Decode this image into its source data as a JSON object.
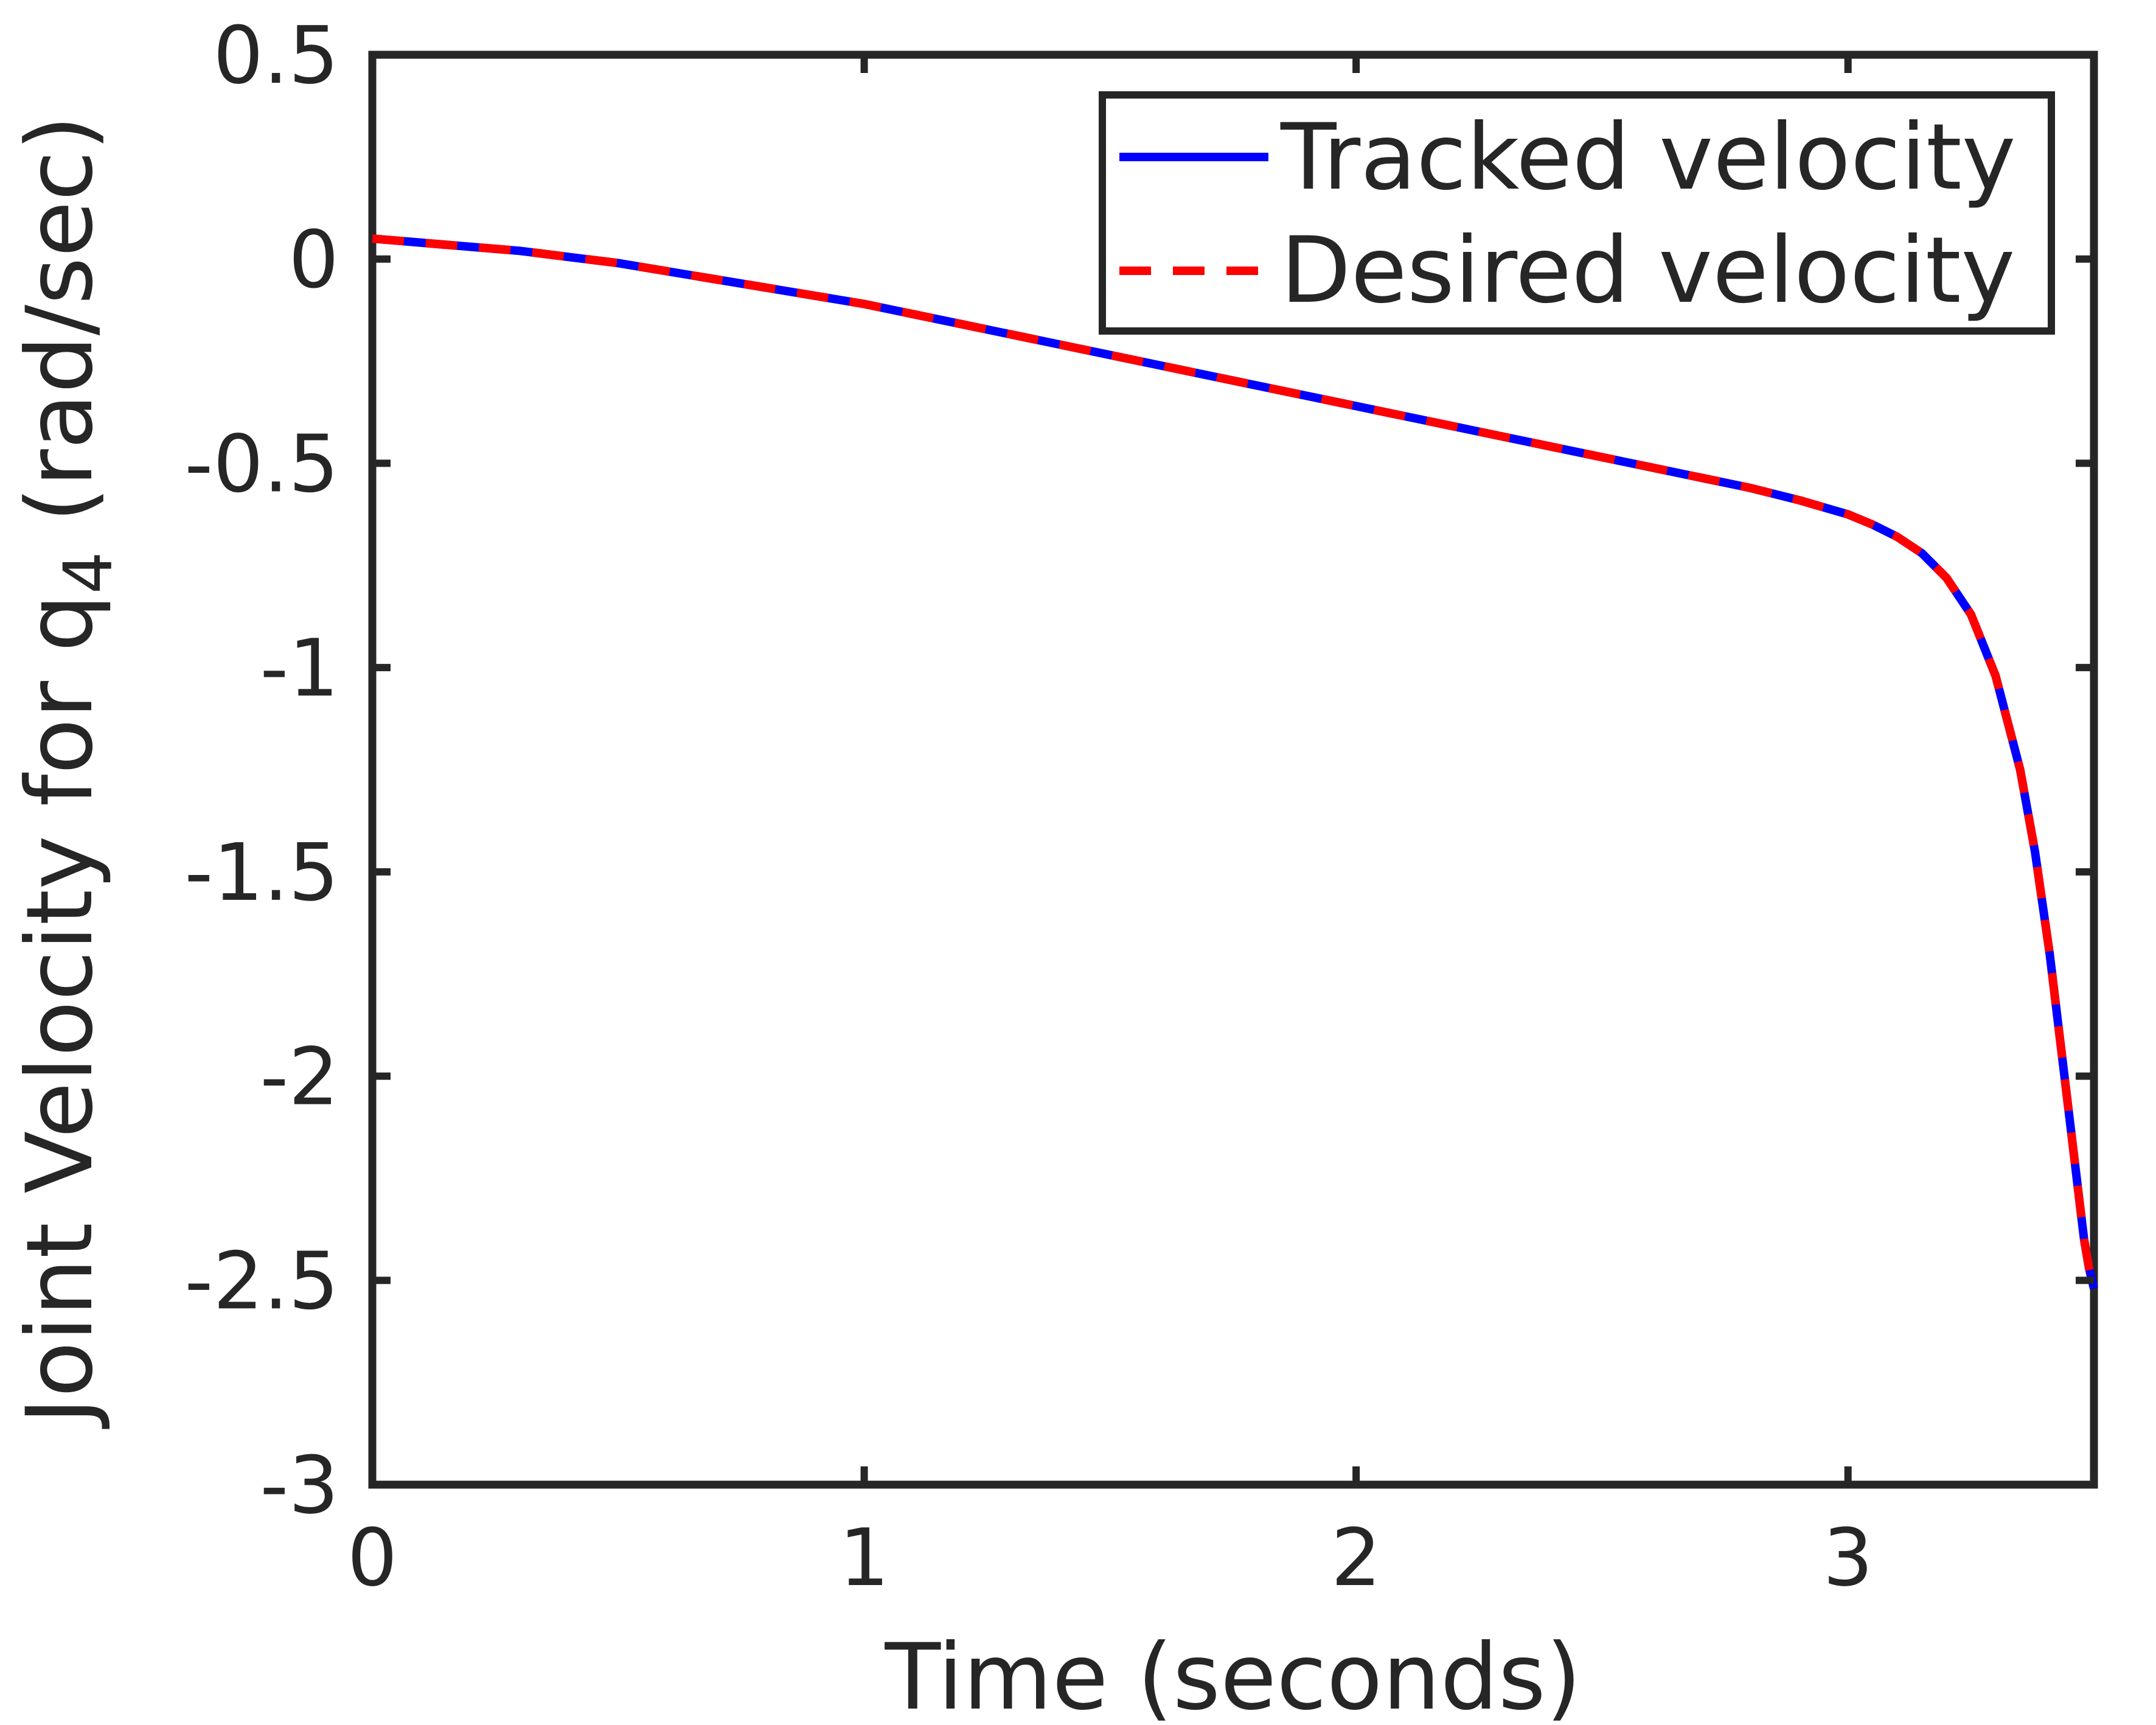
{
  "chart_data": {
    "type": "line",
    "title": "",
    "xlabel": "Time (seconds)",
    "ylabel_main": "Joint Velocity for q",
    "ylabel_sub": "4",
    "ylabel_unit": " (rad/sec)",
    "xlim": [
      0,
      3.5
    ],
    "ylim": [
      -3,
      0.5
    ],
    "xticks": [
      0,
      1,
      2,
      3
    ],
    "xtick_labels": [
      "0",
      "1",
      "2",
      "3"
    ],
    "yticks": [
      0.5,
      0,
      -0.5,
      -1,
      -1.5,
      -2,
      -2.5,
      -3
    ],
    "ytick_labels": [
      "0.5",
      "0",
      "-0.5",
      "-1",
      "-1.5",
      "-2",
      "-2.5",
      "-3"
    ],
    "grid": false,
    "legend_position": "top-right",
    "x": [
      0,
      0.1,
      0.2,
      0.3,
      0.4,
      0.5,
      0.6,
      0.7,
      0.8,
      0.9,
      1.0,
      1.1,
      1.2,
      1.3,
      1.4,
      1.5,
      1.6,
      1.7,
      1.8,
      1.9,
      2.0,
      2.1,
      2.2,
      2.3,
      2.4,
      2.5,
      2.6,
      2.7,
      2.8,
      2.9,
      3.0,
      3.05,
      3.1,
      3.15,
      3.2,
      3.25,
      3.3,
      3.35,
      3.38,
      3.41,
      3.43,
      3.45,
      3.47,
      3.48,
      3.49,
      3.5
    ],
    "series": [
      {
        "name": "Tracked velocity",
        "color": "#0000ff",
        "style": "solid",
        "values": [
          0.05,
          0.04,
          0.03,
          0.02,
          0.005,
          -0.01,
          -0.03,
          -0.05,
          -0.07,
          -0.09,
          -0.11,
          -0.135,
          -0.16,
          -0.185,
          -0.21,
          -0.235,
          -0.26,
          -0.285,
          -0.31,
          -0.335,
          -0.36,
          -0.385,
          -0.41,
          -0.435,
          -0.46,
          -0.485,
          -0.51,
          -0.535,
          -0.56,
          -0.59,
          -0.625,
          -0.65,
          -0.68,
          -0.72,
          -0.78,
          -0.87,
          -1.02,
          -1.25,
          -1.45,
          -1.7,
          -1.9,
          -2.1,
          -2.3,
          -2.4,
          -2.47,
          -2.52
        ]
      },
      {
        "name": "Desired velocity",
        "color": "#ff0000",
        "style": "dashed",
        "values": [
          0.05,
          0.04,
          0.03,
          0.02,
          0.005,
          -0.01,
          -0.03,
          -0.05,
          -0.07,
          -0.09,
          -0.11,
          -0.135,
          -0.16,
          -0.185,
          -0.21,
          -0.235,
          -0.26,
          -0.285,
          -0.31,
          -0.335,
          -0.36,
          -0.385,
          -0.41,
          -0.435,
          -0.46,
          -0.485,
          -0.51,
          -0.535,
          -0.56,
          -0.59,
          -0.625,
          -0.65,
          -0.68,
          -0.72,
          -0.78,
          -0.87,
          -1.02,
          -1.25,
          -1.45,
          -1.7,
          -1.9,
          -2.1,
          -2.3,
          -2.4,
          -2.47,
          -2.52
        ]
      }
    ],
    "colors": {
      "axis": "#262626",
      "background": "#ffffff"
    }
  }
}
